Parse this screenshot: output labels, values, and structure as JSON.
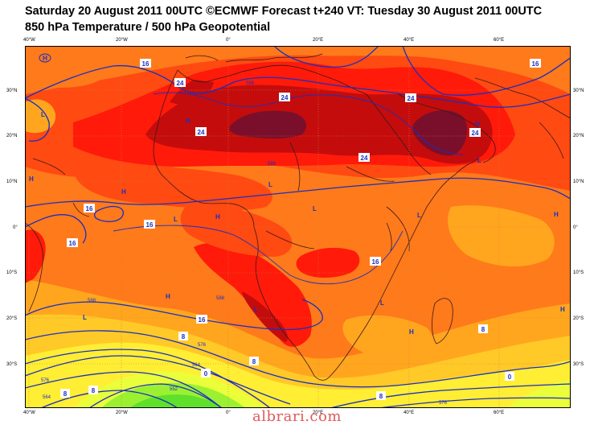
{
  "title_line1": "Saturday 20 August 2011 00UTC ©ECMWF Forecast t+240 VT: Tuesday 30 August 2011 00UTC",
  "title_line2": "850 hPa Temperature / 500 hPa Geopotential",
  "lon_ticks": [
    "40°W",
    "20°W",
    "0°",
    "20°E",
    "40°E",
    "60°E"
  ],
  "lat_ticks": [
    "30°N",
    "20°N",
    "10°N",
    "0°",
    "10°S",
    "20°S",
    "30°S"
  ],
  "temp_labels": [
    "16",
    "24",
    "24",
    "24",
    "24",
    "24",
    "24",
    "16",
    "16",
    "16",
    "16",
    "16",
    "8",
    "8",
    "8",
    "8",
    "8",
    "8",
    "0",
    "0"
  ],
  "geopotential_labels": [
    "588",
    "588",
    "588",
    "588",
    "576",
    "576",
    "564",
    "552",
    "576",
    "564"
  ],
  "pressure_centres": [
    "H",
    "L",
    "H",
    "H",
    "L",
    "H",
    "L",
    "H",
    "L",
    "L",
    "H",
    "L",
    "H",
    "L",
    "L",
    "H",
    "H",
    "H",
    "L"
  ],
  "watermark": "albrari.com",
  "colors": {
    "dark_maroon": "#7a0f2c",
    "dark_red": "#c40c0c",
    "red": "#ff1a0a",
    "red_orange": "#ff4a12",
    "orange": "#ff7a1a",
    "light_orange": "#ffa61e",
    "yellow_orange": "#ffc928",
    "yellow": "#ffee33",
    "light_yellow": "#eaff3a",
    "green": "#9cf032",
    "bright_green": "#5fe02a",
    "contour": "#1a2fc0",
    "coast": "#3a1a1a"
  }
}
